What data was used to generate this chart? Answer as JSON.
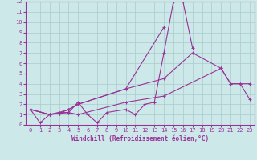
{
  "xlabel": "Windchill (Refroidissement éolien,°C)",
  "bg_color": "#cce8e8",
  "grid_color": "#aacccc",
  "line_color": "#993399",
  "xlim": [
    -0.5,
    23.5
  ],
  "ylim": [
    0,
    12
  ],
  "xticks": [
    0,
    1,
    2,
    3,
    4,
    5,
    6,
    7,
    8,
    9,
    10,
    11,
    12,
    13,
    14,
    15,
    16,
    17,
    18,
    19,
    20,
    21,
    22,
    23
  ],
  "yticks": [
    0,
    1,
    2,
    3,
    4,
    5,
    6,
    7,
    8,
    9,
    10,
    11,
    12
  ],
  "line1_x": [
    0,
    1,
    2,
    3,
    4,
    5,
    6,
    7,
    8,
    10,
    11,
    12,
    13,
    14,
    15,
    16,
    17
  ],
  "line1_y": [
    1.5,
    0.2,
    1.0,
    1.1,
    1.2,
    2.2,
    1.0,
    0.2,
    1.2,
    1.5,
    1.0,
    2.0,
    2.2,
    7.0,
    12.0,
    12.0,
    7.5
  ],
  "line2_x": [
    0,
    2,
    3,
    4,
    5,
    10,
    14
  ],
  "line2_y": [
    1.5,
    1.0,
    1.1,
    1.5,
    2.0,
    3.5,
    9.5
  ],
  "line3_x": [
    0,
    2,
    3,
    4,
    5,
    10,
    14,
    17,
    20,
    21,
    22,
    23
  ],
  "line3_y": [
    1.5,
    1.0,
    1.2,
    1.5,
    2.0,
    3.5,
    4.5,
    7.0,
    5.5,
    4.0,
    4.0,
    4.0
  ],
  "line4_x": [
    0,
    2,
    3,
    4,
    5,
    10,
    14,
    20,
    21,
    22,
    23
  ],
  "line4_y": [
    1.5,
    1.0,
    1.2,
    1.2,
    1.0,
    2.2,
    2.8,
    5.5,
    4.0,
    4.0,
    2.5
  ]
}
